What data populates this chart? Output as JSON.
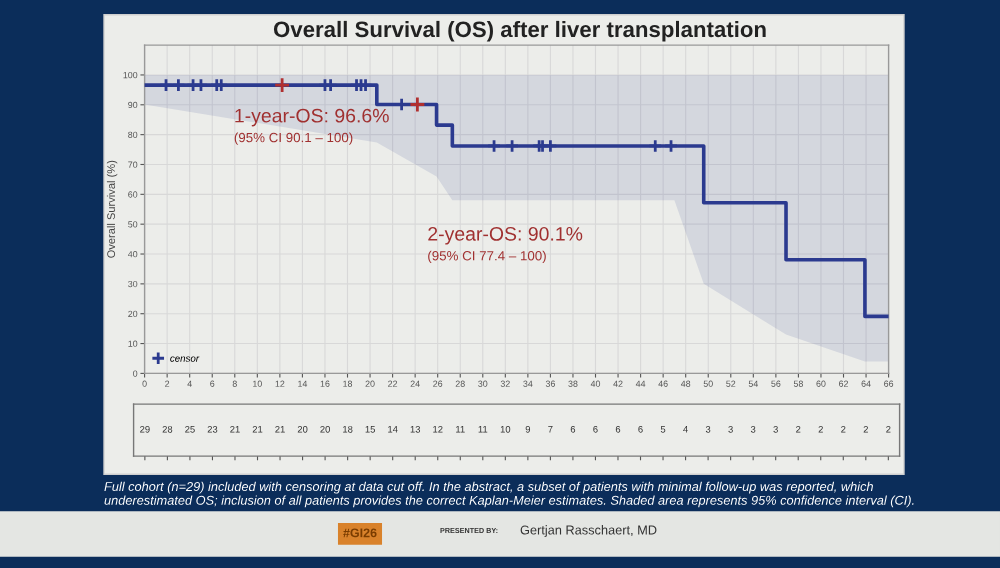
{
  "chart_data": [
    {
      "type": "step",
      "title": "Overall Survival (OS) after liver transplantation",
      "ylabel": "Overall Survival (%)",
      "xlim": [
        0,
        66
      ],
      "xticks": [
        0,
        2,
        4,
        6,
        8,
        10,
        12,
        14,
        16,
        18,
        20,
        22,
        24,
        26,
        28,
        30,
        32,
        34,
        36,
        38,
        40,
        42,
        44,
        46,
        48,
        50,
        52,
        54,
        56,
        58,
        60,
        62,
        64,
        66
      ],
      "ylim": [
        0,
        110
      ],
      "yticks": [
        0,
        10,
        20,
        30,
        40,
        50,
        60,
        70,
        80,
        90,
        100
      ],
      "grid": true,
      "legend": "bottom left",
      "series": [
        {
          "type": "step",
          "color": "#2b3a8f",
          "line_style": "solid",
          "x": [
            0,
            20.6,
            25.9,
            27.3,
            47,
            49.6,
            56.9,
            63.9,
            66
          ],
          "values": [
            96.6,
            90.1,
            83.2,
            76.2,
            76.2,
            57.2,
            38.1,
            19.1,
            19.1
          ],
          "lower": [
            90.1,
            77.4,
            66,
            58,
            58,
            30,
            13,
            4,
            4
          ],
          "upper": [
            100,
            100,
            100,
            100,
            100,
            100,
            100,
            100,
            100
          ]
        },
        {
          "type": "scatter",
          "name": "censor",
          "marker": "cross",
          "color": "#2b3a8f",
          "x": [
            1.9,
            3.0,
            4.3,
            5.0,
            6.4,
            6.8,
            16.0,
            16.5,
            18.8,
            19.2,
            19.6,
            22.8,
            31.0,
            32.6,
            35.0,
            35.3,
            36.0,
            45.3,
            46.7
          ],
          "values": [
            96.6,
            96.6,
            96.6,
            96.6,
            96.6,
            96.6,
            96.6,
            96.6,
            96.6,
            96.6,
            96.6,
            90.1,
            76.2,
            76.2,
            76.2,
            76.2,
            76.2,
            76.2,
            76.2
          ]
        },
        {
          "type": "scatter",
          "marker": "cross",
          "color": "#b03030",
          "x": [
            12.2,
            24.2
          ],
          "values": [
            96.6,
            90.1
          ]
        }
      ],
      "annotations": [
        "1-year-OS: 96.6%",
        "(95% CI 90.1 – 100)",
        "2-year-OS: 90.1%",
        "(95% CI 77.4 – 100)",
        "Full cohort (n=29) included with censoring at data cut off. In the abstract, a subset of patients with minimal follow-up was reported, which underestimated OS; inclusion of all patients provides the correct Kaplan-Meier estimates. Shaded area represents 95% confidence interval (CI).",
        "#GI26",
        "PRESENTED BY:",
        "Gertjan Rasschaert, MD"
      ]
    },
    {
      "type": "other",
      "categories": [
        null,
        null,
        null,
        null,
        null,
        null,
        null,
        null,
        null,
        null,
        null,
        null,
        null,
        null,
        null,
        null,
        null,
        null,
        null,
        null,
        null,
        null,
        null,
        null,
        null,
        null,
        null,
        null,
        null,
        null,
        null,
        null,
        null,
        null
      ],
      "values": [
        29,
        28,
        25,
        23,
        21,
        21,
        21,
        20,
        20,
        18,
        15,
        14,
        13,
        12,
        11,
        11,
        10,
        9,
        7,
        6,
        6,
        6,
        6,
        5,
        4,
        3,
        3,
        3,
        3,
        2,
        2,
        2,
        2,
        2
      ],
      "data_labels": true
    }
  ]
}
